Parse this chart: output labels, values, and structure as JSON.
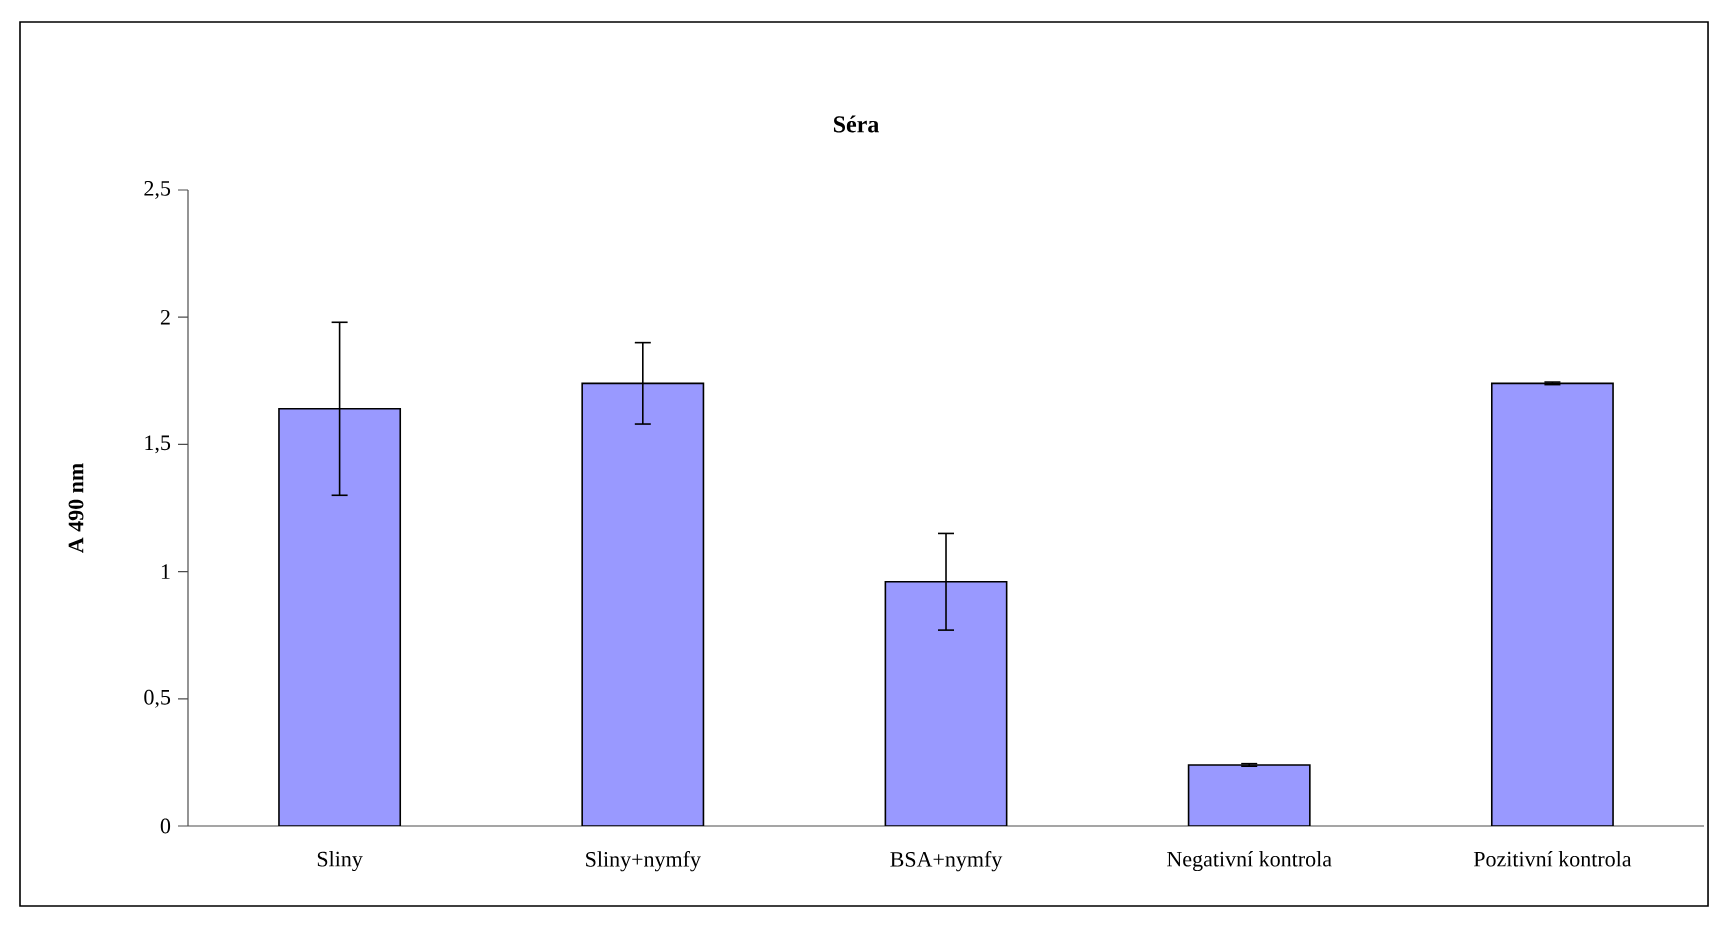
{
  "chart_data": {
    "type": "bar",
    "title": "Séra",
    "ylabel": "A 490 nm",
    "categories": [
      "Sliny",
      "Sliny+nymfy",
      "BSA+nymfy",
      "Negativní kontrola",
      "Pozitivní kontrola"
    ],
    "values": [
      1.64,
      1.74,
      0.96,
      0.24,
      1.74
    ],
    "errors": [
      0.34,
      0.16,
      0.19,
      0.005,
      0.005
    ],
    "color": "#9999ff",
    "ylim": [
      0,
      2.5
    ],
    "yticks": [
      {
        "value": 0,
        "label": "0"
      },
      {
        "value": 0.5,
        "label": "0,5"
      },
      {
        "value": 1,
        "label": "1"
      },
      {
        "value": 1.5,
        "label": "1,5"
      },
      {
        "value": 2,
        "label": "2"
      },
      {
        "value": 2.5,
        "label": "2,5"
      }
    ],
    "grid": false
  }
}
